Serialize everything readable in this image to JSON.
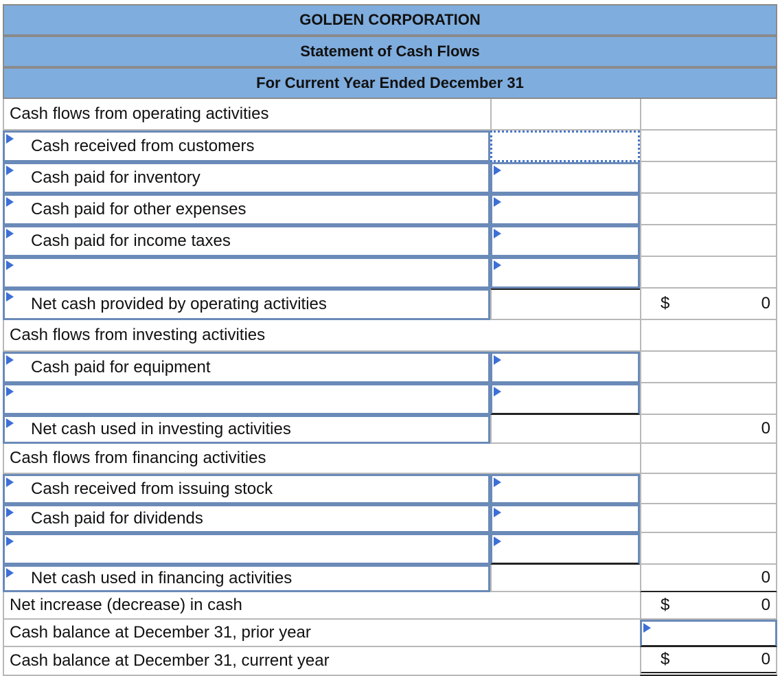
{
  "header": {
    "company": "GOLDEN CORPORATION",
    "statement": "Statement of Cash Flows",
    "period": "For Current Year Ended December 31"
  },
  "operating": {
    "section_label": "Cash flows from operating activities",
    "items": [
      {
        "label": "Cash received from customers",
        "amount": ""
      },
      {
        "label": "Cash paid for inventory",
        "amount": ""
      },
      {
        "label": "Cash paid for other expenses",
        "amount": ""
      },
      {
        "label": "Cash paid for income taxes",
        "amount": ""
      },
      {
        "label": "",
        "amount": ""
      }
    ],
    "net_label": "Net cash provided by operating activities",
    "net_currency": "$",
    "net_value": "0"
  },
  "investing": {
    "section_label": "Cash flows from investing activities",
    "items": [
      {
        "label": "Cash paid for equipment",
        "amount": ""
      },
      {
        "label": "",
        "amount": ""
      }
    ],
    "net_label": "Net cash used in investing activities",
    "net_value": "0"
  },
  "financing": {
    "section_label": "Cash flows from financing activities",
    "items": [
      {
        "label": "Cash received from issuing stock",
        "amount": ""
      },
      {
        "label": "Cash paid for dividends",
        "amount": ""
      },
      {
        "label": "",
        "amount": ""
      }
    ],
    "net_label": "Net cash used in financing activities",
    "net_value": "0"
  },
  "summary": {
    "net_change_label": "Net increase (decrease) in cash",
    "net_change_currency": "$",
    "net_change_value": "0",
    "prior_label": "Cash balance at December 31, prior year",
    "prior_value": "",
    "current_label": "Cash balance at December 31, current year",
    "current_currency": "$",
    "current_value": "0"
  },
  "colors": {
    "header_bg": "#7fadde",
    "input_border": "#6a8ab8",
    "marker": "#3d6fd6"
  }
}
